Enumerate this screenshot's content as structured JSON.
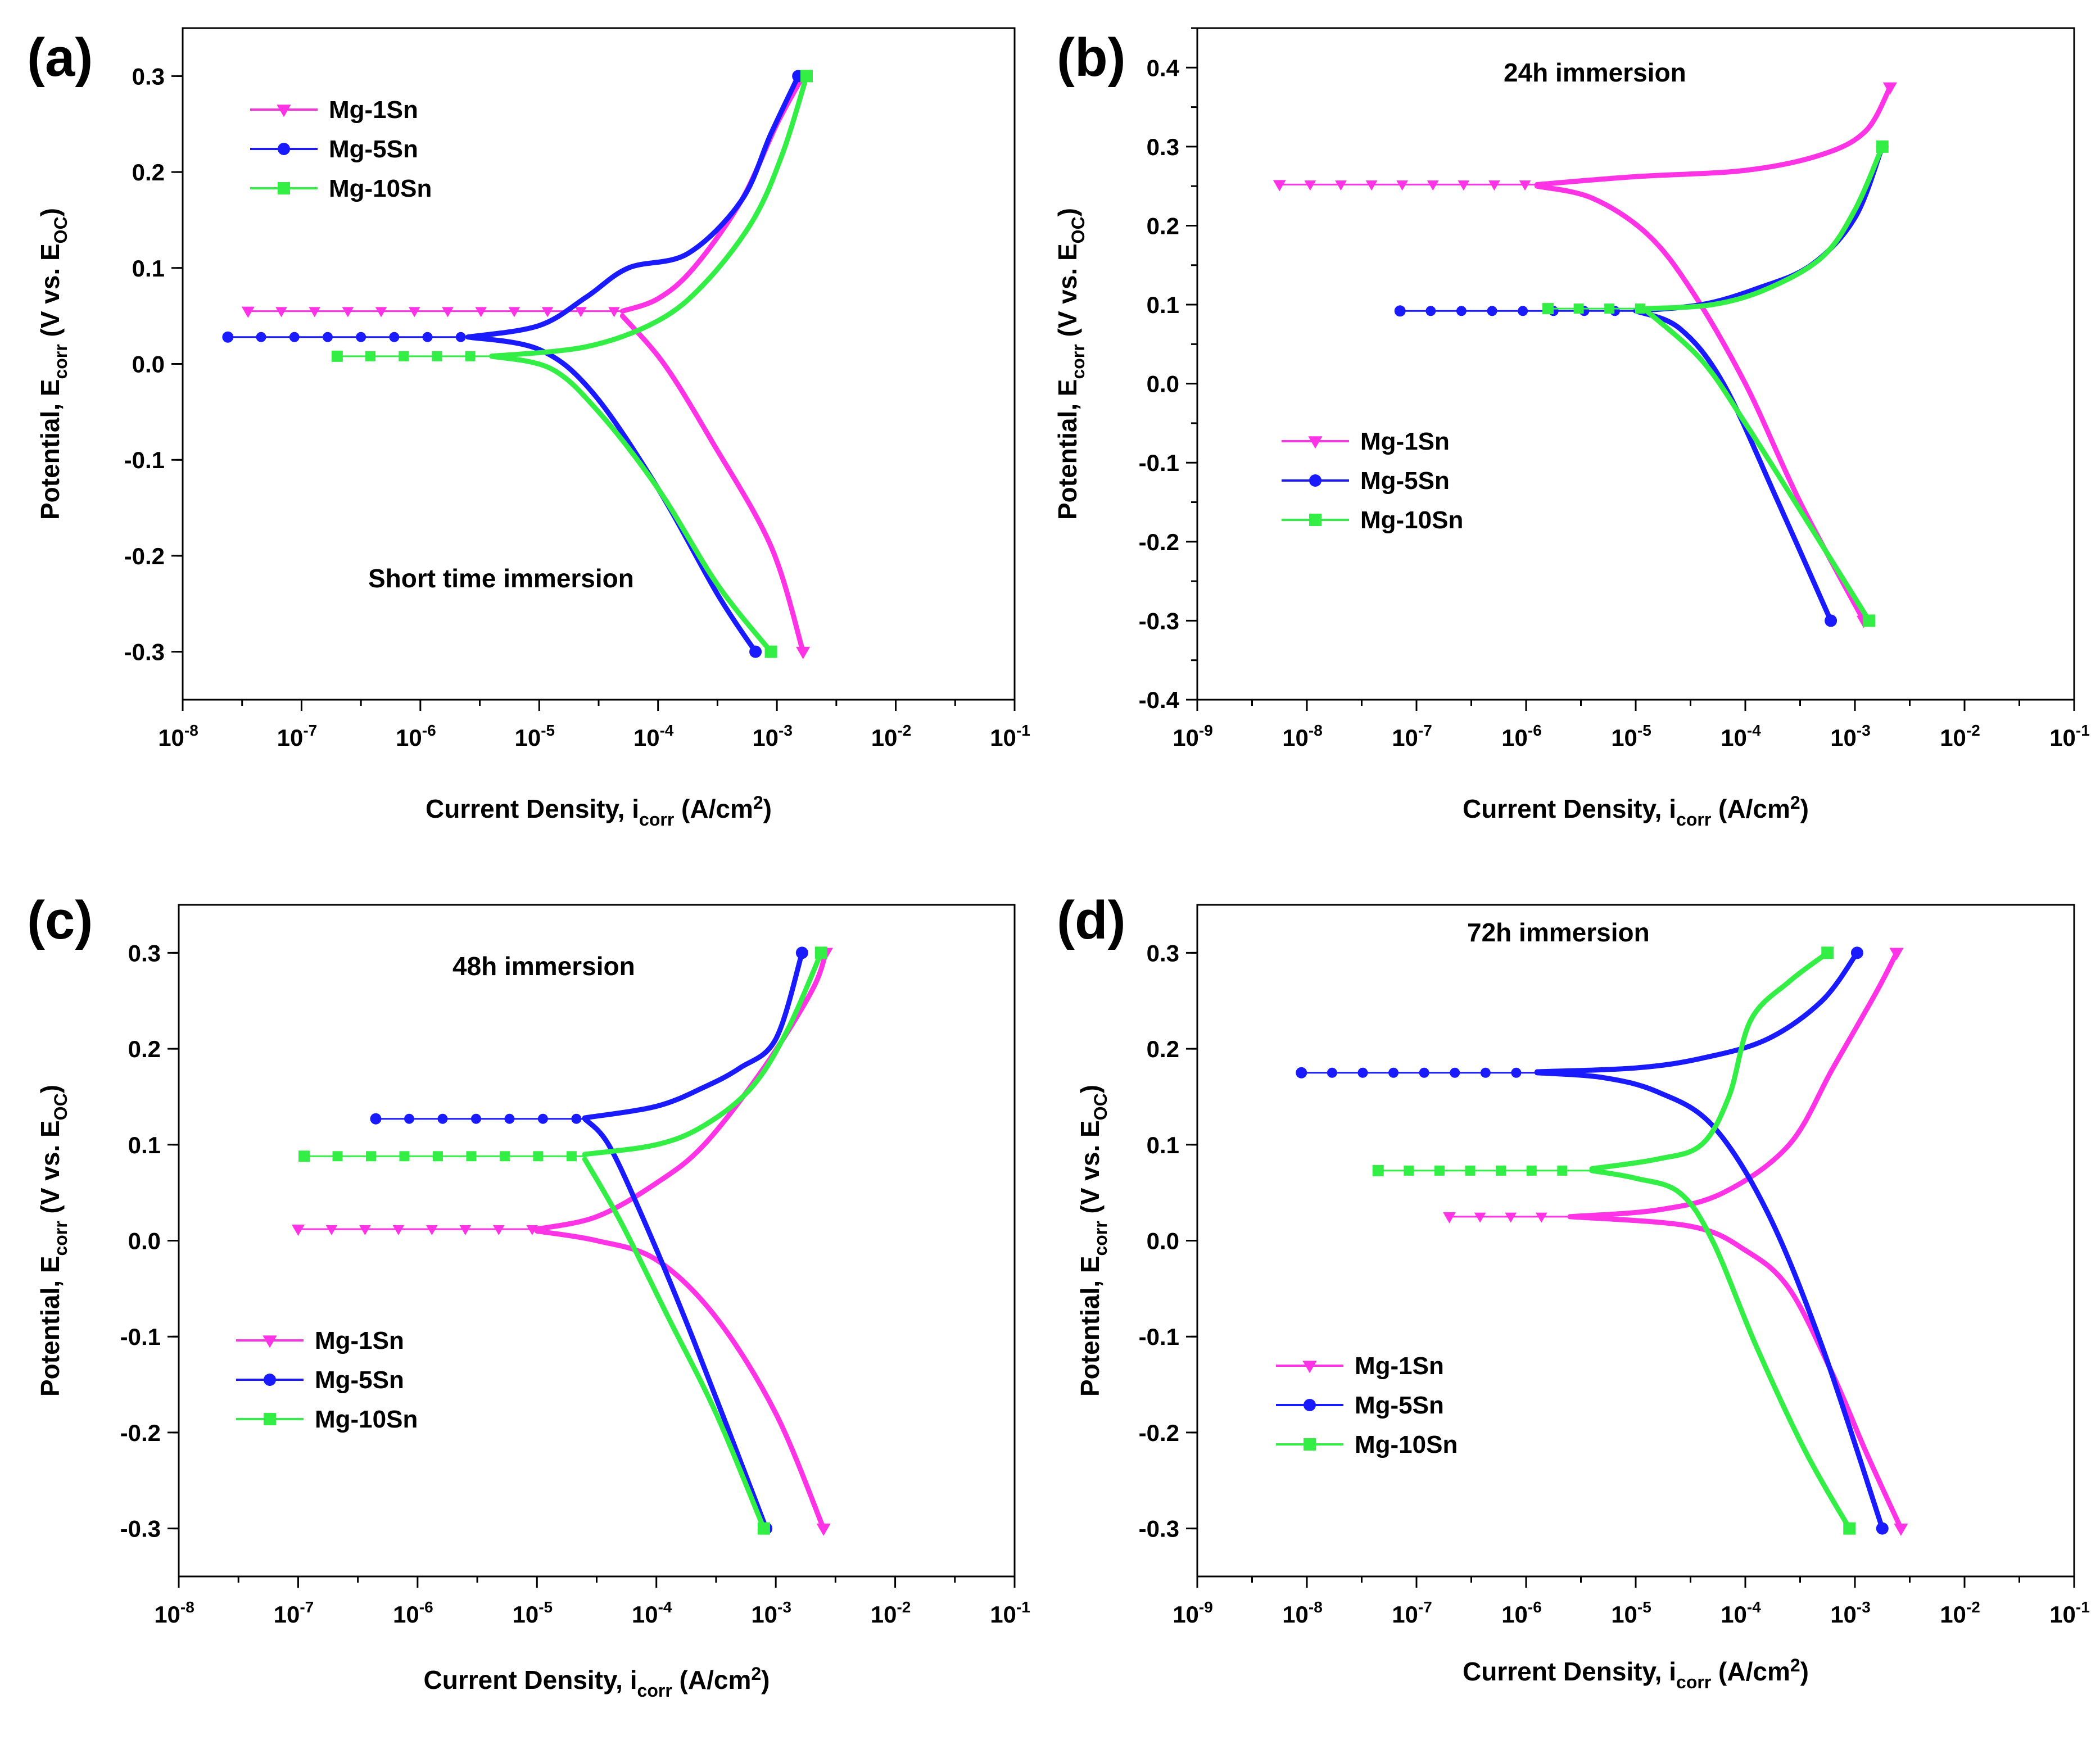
{
  "figure": {
    "colors": {
      "mg1": "#ff33e6",
      "mg5": "#1a1aff",
      "mg10": "#33ee44"
    },
    "series_names": [
      "Mg-1Sn",
      "Mg-5Sn",
      "Mg-10Sn"
    ]
  },
  "chart_data": [
    {
      "type": "line",
      "panel": "(a)",
      "annotation": "Short time immersion",
      "xlabel": "Current Density, i_corr (A/cm²)",
      "ylabel": "Potential, E_corr (V vs. E_OC)",
      "x_scale": "log10",
      "xlim": [
        -8,
        -1
      ],
      "ylim": [
        -0.35,
        0.35
      ],
      "x_ticks": [
        -8,
        -7,
        -6,
        -5,
        -4,
        -3,
        -2,
        -1
      ],
      "y_ticks": [
        -0.3,
        -0.2,
        -0.1,
        0.0,
        0.1,
        0.2,
        0.3
      ],
      "y_tick_labels": [
        "-0.3",
        "-0.2",
        "-0.1",
        "0.0",
        "0.1",
        "0.2",
        "0.3"
      ],
      "legend_position": "top-left",
      "series": [
        {
          "name": "Mg-1Sn",
          "color": "#ff33e6",
          "marker": "triangle-down",
          "ecorr": 0.055,
          "icorr_log": -4.3,
          "start_log": -7.45,
          "anodic": [
            [
              -4.3,
              0.055
            ],
            [
              -4.0,
              0.068
            ],
            [
              -3.7,
              0.1
            ],
            [
              -3.3,
              0.17
            ],
            [
              -3.0,
              0.25
            ],
            [
              -2.78,
              0.3
            ]
          ],
          "cathodic": [
            [
              -4.3,
              0.05
            ],
            [
              -3.95,
              0.0
            ],
            [
              -3.55,
              -0.08
            ],
            [
              -3.05,
              -0.19
            ],
            [
              -2.78,
              -0.3
            ]
          ]
        },
        {
          "name": "Mg-5Sn",
          "color": "#1a1aff",
          "marker": "circle",
          "ecorr": 0.028,
          "icorr_log": -5.6,
          "start_log": -7.62,
          "anodic": [
            [
              -5.6,
              0.028
            ],
            [
              -5.0,
              0.04
            ],
            [
              -4.6,
              0.07
            ],
            [
              -4.25,
              0.1
            ],
            [
              -3.75,
              0.115
            ],
            [
              -3.3,
              0.17
            ],
            [
              -3.05,
              0.24
            ],
            [
              -2.82,
              0.3
            ]
          ],
          "cathodic": [
            [
              -5.6,
              0.028
            ],
            [
              -5.0,
              0.015
            ],
            [
              -4.55,
              -0.03
            ],
            [
              -4.0,
              -0.13
            ],
            [
              -3.5,
              -0.24
            ],
            [
              -3.18,
              -0.3
            ]
          ]
        },
        {
          "name": "Mg-10Sn",
          "color": "#33ee44",
          "marker": "square",
          "ecorr": 0.008,
          "icorr_log": -5.4,
          "start_log": -6.7,
          "anodic": [
            [
              -5.4,
              0.008
            ],
            [
              -4.6,
              0.018
            ],
            [
              -4.0,
              0.045
            ],
            [
              -3.6,
              0.085
            ],
            [
              -3.2,
              0.15
            ],
            [
              -2.95,
              0.22
            ],
            [
              -2.75,
              0.3
            ]
          ],
          "cathodic": [
            [
              -5.4,
              0.008
            ],
            [
              -4.9,
              -0.005
            ],
            [
              -4.5,
              -0.05
            ],
            [
              -4.0,
              -0.13
            ],
            [
              -3.5,
              -0.23
            ],
            [
              -3.05,
              -0.3
            ]
          ]
        }
      ]
    },
    {
      "type": "line",
      "panel": "(b)",
      "annotation": "24h immersion",
      "xlabel": "Current Density, i_corr (A/cm²)",
      "ylabel": "Potential, E_corr (V vs. E_OC)",
      "x_scale": "log10",
      "xlim": [
        -9,
        -1
      ],
      "ylim": [
        -0.4,
        0.45
      ],
      "x_ticks": [
        -9,
        -8,
        -7,
        -6,
        -5,
        -4,
        -3,
        -2,
        -1
      ],
      "y_ticks": [
        -0.4,
        -0.3,
        -0.2,
        -0.1,
        0.0,
        0.1,
        0.2,
        0.3,
        0.4
      ],
      "y_tick_labels": [
        "-0.4",
        "-0.3",
        "-0.2",
        "-0.1",
        "0.0",
        "0.1",
        "0.2",
        "0.3",
        "0.4"
      ],
      "legend_position": "middle-left",
      "series": [
        {
          "name": "Mg-1Sn",
          "color": "#ff33e6",
          "marker": "triangle-down",
          "ecorr": 0.252,
          "icorr_log": -5.9,
          "start_log": -8.25,
          "anodic": [
            [
              -5.9,
              0.252
            ],
            [
              -5.0,
              0.262
            ],
            [
              -4.0,
              0.27
            ],
            [
              -3.3,
              0.29
            ],
            [
              -2.9,
              0.32
            ],
            [
              -2.68,
              0.375
            ]
          ],
          "cathodic": [
            [
              -5.9,
              0.25
            ],
            [
              -5.4,
              0.235
            ],
            [
              -4.9,
              0.19
            ],
            [
              -4.5,
              0.12
            ],
            [
              -4.0,
              0.0
            ],
            [
              -3.5,
              -0.15
            ],
            [
              -2.92,
              -0.3
            ]
          ]
        },
        {
          "name": "Mg-5Sn",
          "color": "#1a1aff",
          "marker": "circle",
          "ecorr": 0.092,
          "icorr_log": -5.0,
          "start_log": -7.15,
          "anodic": [
            [
              -5.0,
              0.092
            ],
            [
              -4.4,
              0.1
            ],
            [
              -3.9,
              0.12
            ],
            [
              -3.4,
              0.15
            ],
            [
              -3.0,
              0.21
            ],
            [
              -2.75,
              0.3
            ]
          ],
          "cathodic": [
            [
              -5.0,
              0.092
            ],
            [
              -4.6,
              0.07
            ],
            [
              -4.2,
              0.0
            ],
            [
              -3.7,
              -0.15
            ],
            [
              -3.22,
              -0.3
            ]
          ]
        },
        {
          "name": "Mg-10Sn",
          "color": "#33ee44",
          "marker": "square",
          "ecorr": 0.095,
          "icorr_log": -4.9,
          "start_log": -5.8,
          "anodic": [
            [
              -4.9,
              0.095
            ],
            [
              -4.3,
              0.1
            ],
            [
              -3.8,
              0.12
            ],
            [
              -3.3,
              0.16
            ],
            [
              -3.0,
              0.22
            ],
            [
              -2.75,
              0.3
            ]
          ],
          "cathodic": [
            [
              -4.9,
              0.092
            ],
            [
              -4.4,
              0.03
            ],
            [
              -4.0,
              -0.05
            ],
            [
              -3.5,
              -0.16
            ],
            [
              -2.87,
              -0.3
            ]
          ]
        }
      ]
    },
    {
      "type": "line",
      "panel": "(c)",
      "annotation": "48h immersion",
      "xlabel": "Current Density, i_corr (A/cm²)",
      "ylabel": "Potential, E_corr (V vs. E_OC)",
      "x_scale": "log10",
      "xlim": [
        -8,
        -1
      ],
      "ylim": [
        -0.35,
        0.35
      ],
      "x_ticks": [
        -8,
        -7,
        -6,
        -5,
        -4,
        -3,
        -2,
        -1
      ],
      "y_ticks": [
        -0.3,
        -0.2,
        -0.1,
        0.0,
        0.1,
        0.2,
        0.3
      ],
      "y_tick_labels": [
        "-0.3",
        "-0.2",
        "-0.1",
        "0.0",
        "0.1",
        "0.2",
        "0.3"
      ],
      "legend_position": "bottom-left",
      "series": [
        {
          "name": "Mg-1Sn",
          "color": "#ff33e6",
          "marker": "triangle-down",
          "ecorr": 0.012,
          "icorr_log": -5.0,
          "start_log": -7.0,
          "anodic": [
            [
              -5.0,
              0.012
            ],
            [
              -4.5,
              0.025
            ],
            [
              -4.0,
              0.06
            ],
            [
              -3.6,
              0.1
            ],
            [
              -3.1,
              0.18
            ],
            [
              -2.7,
              0.26
            ],
            [
              -2.58,
              0.3
            ]
          ],
          "cathodic": [
            [
              -5.0,
              0.01
            ],
            [
              -4.5,
              0.0
            ],
            [
              -4.0,
              -0.02
            ],
            [
              -3.5,
              -0.08
            ],
            [
              -3.0,
              -0.18
            ],
            [
              -2.6,
              -0.3
            ]
          ]
        },
        {
          "name": "Mg-5Sn",
          "color": "#1a1aff",
          "marker": "circle",
          "ecorr": 0.127,
          "icorr_log": -4.6,
          "start_log": -6.35,
          "anodic": [
            [
              -4.6,
              0.128
            ],
            [
              -4.0,
              0.14
            ],
            [
              -3.6,
              0.16
            ],
            [
              -3.3,
              0.18
            ],
            [
              -3.0,
              0.21
            ],
            [
              -2.78,
              0.3
            ]
          ],
          "cathodic": [
            [
              -4.6,
              0.127
            ],
            [
              -4.4,
              0.1
            ],
            [
              -4.1,
              0.02
            ],
            [
              -3.7,
              -0.1
            ],
            [
              -3.08,
              -0.3
            ]
          ]
        },
        {
          "name": "Mg-10Sn",
          "color": "#33ee44",
          "marker": "square",
          "ecorr": 0.088,
          "icorr_log": -4.6,
          "start_log": -6.95,
          "anodic": [
            [
              -4.6,
              0.09
            ],
            [
              -4.0,
              0.1
            ],
            [
              -3.6,
              0.12
            ],
            [
              -3.2,
              0.16
            ],
            [
              -2.9,
              0.22
            ],
            [
              -2.62,
              0.3
            ]
          ],
          "cathodic": [
            [
              -4.6,
              0.085
            ],
            [
              -4.3,
              0.02
            ],
            [
              -3.9,
              -0.08
            ],
            [
              -3.5,
              -0.18
            ],
            [
              -3.1,
              -0.3
            ]
          ]
        }
      ]
    },
    {
      "type": "line",
      "panel": "(d)",
      "annotation": "72h immersion",
      "xlabel": "Current Density, i_corr (A/cm²)",
      "ylabel": "Potential, E_corr (V vs. E_OC)",
      "x_scale": "log10",
      "xlim": [
        -9,
        -1
      ],
      "ylim": [
        -0.35,
        0.35
      ],
      "x_ticks": [
        -9,
        -8,
        -7,
        -6,
        -5,
        -4,
        -3,
        -2,
        -1
      ],
      "y_ticks": [
        -0.3,
        -0.2,
        -0.1,
        0.0,
        0.1,
        0.2,
        0.3
      ],
      "y_tick_labels": [
        "-0.3",
        "-0.2",
        "-0.1",
        "0.0",
        "0.1",
        "0.2",
        "0.3"
      ],
      "legend_position": "middle-left",
      "series": [
        {
          "name": "Mg-1Sn",
          "color": "#ff33e6",
          "marker": "triangle-down",
          "ecorr": 0.025,
          "icorr_log": -5.6,
          "start_log": -6.7,
          "anodic": [
            [
              -5.6,
              0.025
            ],
            [
              -4.8,
              0.032
            ],
            [
              -4.2,
              0.05
            ],
            [
              -3.6,
              0.1
            ],
            [
              -3.2,
              0.18
            ],
            [
              -2.8,
              0.26
            ],
            [
              -2.62,
              0.3
            ]
          ],
          "cathodic": [
            [
              -5.6,
              0.025
            ],
            [
              -4.5,
              0.015
            ],
            [
              -4.0,
              -0.01
            ],
            [
              -3.6,
              -0.05
            ],
            [
              -3.2,
              -0.14
            ],
            [
              -2.9,
              -0.22
            ],
            [
              -2.58,
              -0.3
            ]
          ]
        },
        {
          "name": "Mg-5Sn",
          "color": "#1a1aff",
          "marker": "circle",
          "ecorr": 0.175,
          "icorr_log": -5.9,
          "start_log": -8.05,
          "anodic": [
            [
              -5.9,
              0.176
            ],
            [
              -5.0,
              0.18
            ],
            [
              -4.4,
              0.19
            ],
            [
              -3.8,
              0.21
            ],
            [
              -3.3,
              0.25
            ],
            [
              -2.98,
              0.3
            ]
          ],
          "cathodic": [
            [
              -5.9,
              0.175
            ],
            [
              -5.3,
              0.17
            ],
            [
              -4.8,
              0.155
            ],
            [
              -4.3,
              0.12
            ],
            [
              -3.8,
              0.03
            ],
            [
              -3.3,
              -0.11
            ],
            [
              -2.75,
              -0.3
            ]
          ]
        },
        {
          "name": "Mg-10Sn",
          "color": "#33ee44",
          "marker": "square",
          "ecorr": 0.073,
          "icorr_log": -5.4,
          "start_log": -7.35,
          "anodic": [
            [
              -5.4,
              0.075
            ],
            [
              -4.8,
              0.085
            ],
            [
              -4.4,
              0.1
            ],
            [
              -4.15,
              0.15
            ],
            [
              -3.95,
              0.23
            ],
            [
              -3.6,
              0.27
            ],
            [
              -3.25,
              0.3
            ]
          ],
          "cathodic": [
            [
              -5.4,
              0.073
            ],
            [
              -5.0,
              0.065
            ],
            [
              -4.6,
              0.05
            ],
            [
              -4.3,
              0.0
            ],
            [
              -3.9,
              -0.11
            ],
            [
              -3.45,
              -0.22
            ],
            [
              -3.05,
              -0.3
            ]
          ]
        }
      ]
    }
  ]
}
